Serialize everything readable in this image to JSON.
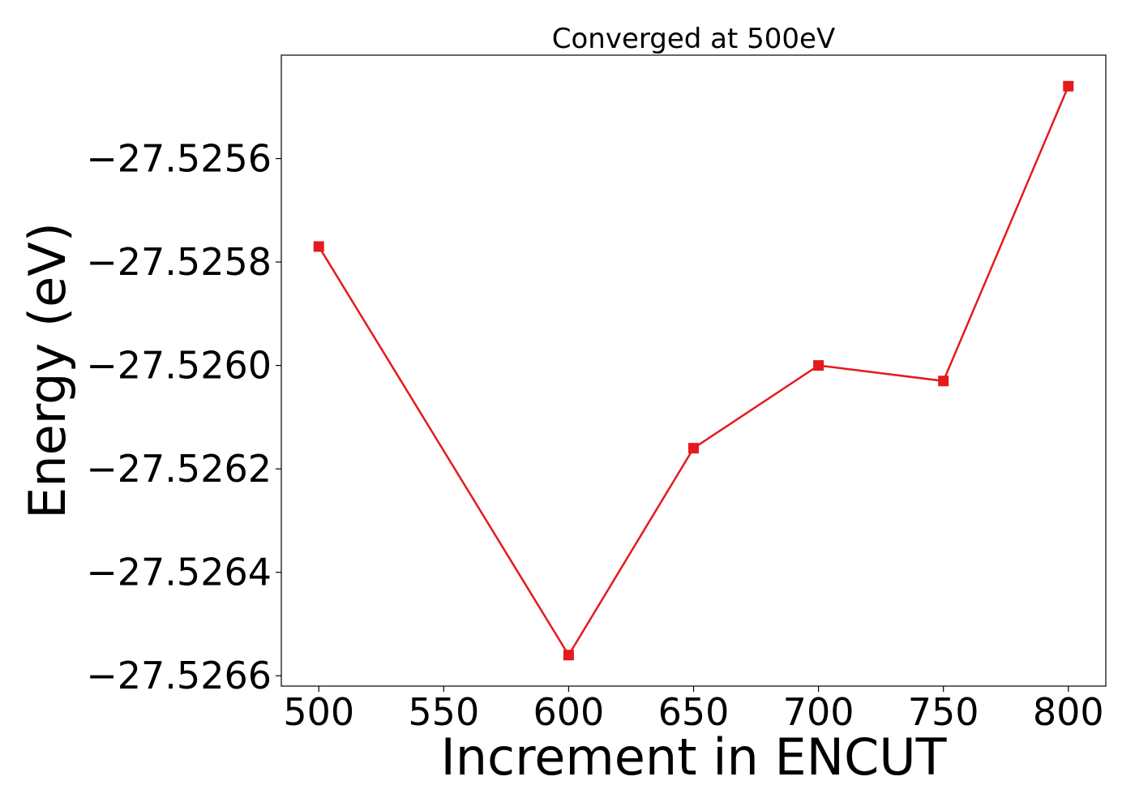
{
  "chart_data": {
    "type": "line",
    "title": "Converged at 500eV",
    "xlabel": "Increment in ENCUT",
    "ylabel": "Energy (eV)",
    "x": [
      500,
      600,
      650,
      700,
      750,
      800
    ],
    "series": [
      {
        "values": [
          -27.52577,
          -27.52656,
          -27.52616,
          -27.526,
          -27.52603,
          -27.52546
        ],
        "color": "#e41a1c",
        "marker": "square"
      }
    ],
    "xticks": [
      500,
      550,
      600,
      650,
      700,
      750,
      800
    ],
    "xtick_labels": [
      "500",
      "550",
      "600",
      "650",
      "700",
      "750",
      "800"
    ],
    "yticks": [
      -27.5256,
      -27.5258,
      -27.526,
      -27.5262,
      -27.5264,
      -27.5266
    ],
    "ytick_labels": [
      "−27.5256",
      "−27.5258",
      "−27.5260",
      "−27.5262",
      "−27.5264",
      "−27.5266"
    ],
    "xlim": [
      485,
      815
    ],
    "ylim": [
      -27.52662,
      -27.5254
    ],
    "grid": false,
    "legend": false
  }
}
